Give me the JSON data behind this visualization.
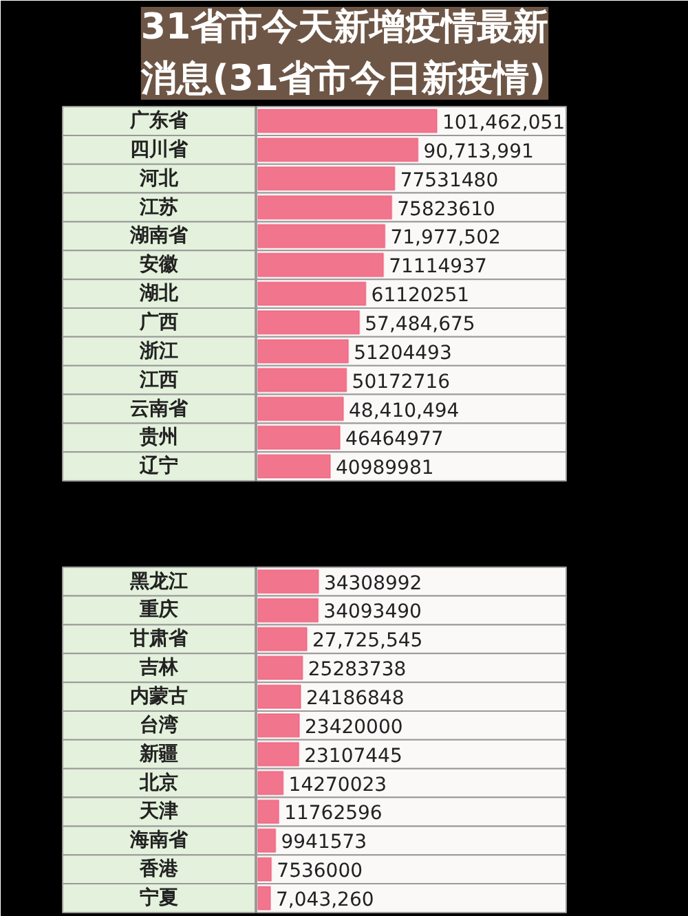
{
  "chart_data": {
    "type": "bar",
    "orientation": "horizontal",
    "title": "31省市今天新增疫情最新消息(31省市今日新疫情)",
    "color": "#ee4a6a",
    "categories": [
      "广东省",
      "四川省",
      "河北",
      "江苏",
      "湖南省",
      "安徽",
      "湖北",
      "广西",
      "浙江",
      "江西",
      "云南省",
      "贵州",
      "辽宁",
      null,
      null,
      null,
      "黑龙江",
      "重庆",
      "甘肃省",
      "吉林",
      "内蒙古",
      "台湾",
      "新疆",
      "北京",
      "天津",
      "海南省",
      "香港",
      "宁夏"
    ],
    "values": [
      101462051,
      90713991,
      77531480,
      75823610,
      71977502,
      71114937,
      61120251,
      57484675,
      51204493,
      50172716,
      48410494,
      46464977,
      40989981,
      null,
      null,
      null,
      34308992,
      34093490,
      27725545,
      25283738,
      24186848,
      23420000,
      23107445,
      14270023,
      11762596,
      9941573,
      7536000,
      7043260
    ],
    "value_labels": [
      "101,462,051",
      "90,713,991",
      "77531480",
      "75823610",
      "71,977,502",
      "71114937",
      "61120251",
      "57,484,675",
      "51204493",
      "50172716",
      "48,410,494",
      "46464977",
      "40989981",
      null,
      null,
      null,
      "34308992",
      "34093490",
      "27,725,545",
      "25283738",
      "24186848",
      "23420000",
      "23107445",
      "14270023",
      "11762596",
      "9941573",
      "7536000",
      "7,043,260"
    ]
  }
}
